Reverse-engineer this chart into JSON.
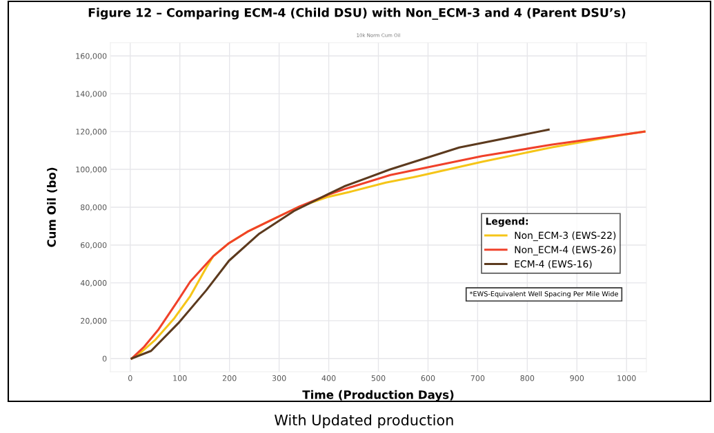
{
  "chart_data": {
    "type": "line",
    "title": "Figure 12 – Comparing ECM-4 (Child DSU) with Non_ECM-3 and 4 (Parent DSU’s)",
    "subtitle": "10k Norm Cum Oil",
    "xlabel": "Time (Production Days)",
    "ylabel": "Cum Oil (bo)",
    "legend_title": "Legend:",
    "annotations": [
      "*EWS-Equivalent Well Spacing Per Mile Wide",
      "With Updated production"
    ],
    "xlim": [
      -40,
      1040
    ],
    "xticks": [
      0,
      100,
      200,
      300,
      400,
      500,
      600,
      700,
      800,
      900,
      1000
    ],
    "ylim": [
      -7000,
      167000
    ],
    "yticks": [
      {
        "value": 0,
        "label": "0"
      },
      {
        "value": 20000,
        "label": "20,000"
      },
      {
        "value": 40000,
        "label": "40,000"
      },
      {
        "value": 60000,
        "label": "60,000"
      },
      {
        "value": 80000,
        "label": "80,000"
      },
      {
        "value": 100000,
        "label": "100,000"
      },
      {
        "value": 120000,
        "label": "120,000"
      },
      {
        "value": 140000,
        "label": "140,000"
      },
      {
        "value": 160000,
        "label": "160,000"
      }
    ],
    "grid": true,
    "legend": "right",
    "marker": "none",
    "line_style": "solid",
    "series": [
      {
        "name": "Non_ECM-3 (EWS-22)",
        "color": "#f5c518",
        "x": [
          3,
          14,
          51,
          88,
          121,
          153,
          167,
          199,
          236,
          283,
          338,
          399,
          441,
          515,
          570,
          709,
          848,
          987,
          1036
        ],
        "values": [
          0,
          1500,
          10000,
          21000,
          33000,
          48000,
          54000,
          61000,
          67000,
          73000,
          80000,
          85500,
          88000,
          93000,
          95800,
          104000,
          111600,
          118000,
          120000
        ]
      },
      {
        "name": "Non_ECM-4 (EWS-26)",
        "color": "#f0412a",
        "x": [
          3,
          28,
          56,
          97,
          121,
          167,
          199,
          236,
          283,
          338,
          399,
          431,
          524,
          709,
          848,
          1036
        ],
        "values": [
          0,
          6200,
          15000,
          31000,
          40700,
          54000,
          61000,
          67000,
          73000,
          80000,
          86600,
          89500,
          97000,
          107000,
          113000,
          120000
        ]
      },
      {
        "name": "ECM-4 (EWS-16)",
        "color": "#5c3a1e",
        "x": [
          3,
          42,
          97,
          153,
          199,
          260,
          330,
          399,
          431,
          524,
          663,
          843
        ],
        "values": [
          0,
          4000,
          18700,
          36000,
          51700,
          66000,
          78000,
          87000,
          91000,
          100000,
          111600,
          121000
        ]
      }
    ]
  }
}
